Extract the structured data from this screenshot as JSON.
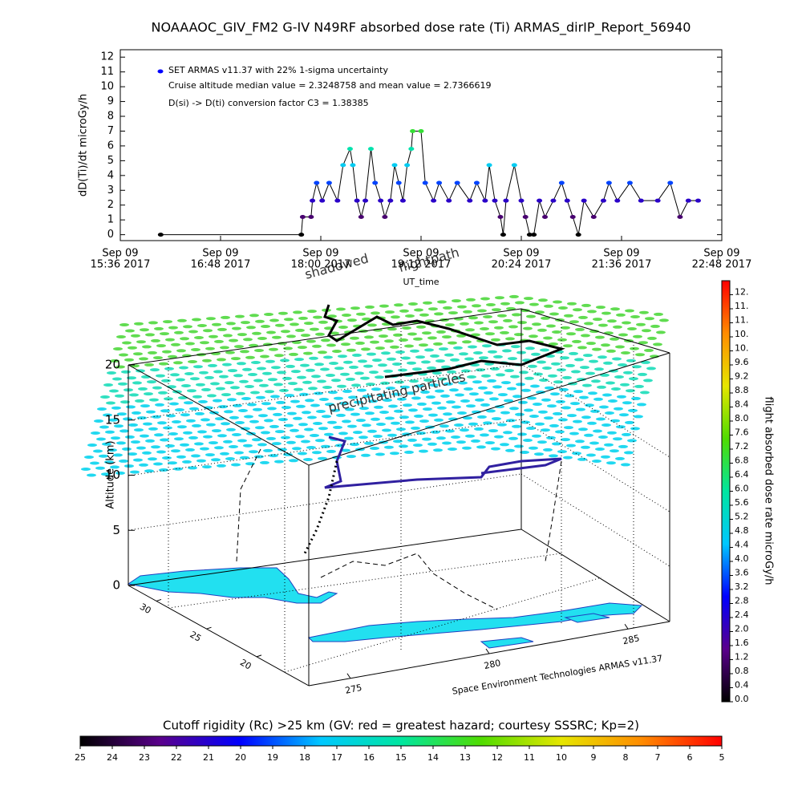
{
  "chart_data": [
    {
      "type": "line",
      "title": "NOAAAOC_GIV_FM2 G-IV   N49RF  absorbed dose rate (Ti) ARMAS_dirIP_Report_56940",
      "ylabel": "dD(Ti)/dt microGy/h",
      "xlabel": "UT_time",
      "annotations": [
        "Cruise altitude median value = 2.3248758 and mean value = 2.7366619",
        "D(si) -> D(ti) conversion factor C3 = 1.38385"
      ],
      "legend": "upper left",
      "xlim": [
        "2017-09-09T15:36",
        "2017-09-09T22:48"
      ],
      "xticks": [
        {
          "value": "2017-09-09T15:36",
          "label": [
            "Sep 09",
            "15:36 2017"
          ]
        },
        {
          "value": "2017-09-09T16:48",
          "label": [
            "Sep 09",
            "16:48 2017"
          ]
        },
        {
          "value": "2017-09-09T18:00",
          "label": [
            "Sep 09",
            "18:00 2017"
          ]
        },
        {
          "value": "2017-09-09T19:12",
          "label": [
            "Sep 09",
            "19:12 2017"
          ]
        },
        {
          "value": "2017-09-09T20:24",
          "label": [
            "Sep 09",
            "20:24 2017"
          ]
        },
        {
          "value": "2017-09-09T21:36",
          "label": [
            "Sep 09",
            "21:36 2017"
          ]
        },
        {
          "value": "2017-09-09T22:48",
          "label": [
            "Sep 09",
            "22:48 2017"
          ]
        }
      ],
      "ylim": [
        -0.4,
        12.5
      ],
      "yticks": [
        0,
        1,
        2,
        3,
        4,
        5,
        6,
        7,
        8,
        9,
        10,
        11,
        12
      ],
      "x": [
        "2017-09-09T16:05",
        "2017-09-09T17:46",
        "2017-09-09T17:47",
        "2017-09-09T17:53",
        "2017-09-09T17:54",
        "2017-09-09T17:57",
        "2017-09-09T18:01",
        "2017-09-09T18:06",
        "2017-09-09T18:12",
        "2017-09-09T18:16",
        "2017-09-09T18:21",
        "2017-09-09T18:23",
        "2017-09-09T18:26",
        "2017-09-09T18:29",
        "2017-09-09T18:32",
        "2017-09-09T18:36",
        "2017-09-09T18:39",
        "2017-09-09T18:43",
        "2017-09-09T18:46",
        "2017-09-09T18:50",
        "2017-09-09T18:53",
        "2017-09-09T18:56",
        "2017-09-09T18:59",
        "2017-09-09T19:02",
        "2017-09-09T19:05",
        "2017-09-09T19:06",
        "2017-09-09T19:12",
        "2017-09-09T19:15",
        "2017-09-09T19:21",
        "2017-09-09T19:25",
        "2017-09-09T19:32",
        "2017-09-09T19:38",
        "2017-09-09T19:47",
        "2017-09-09T19:52",
        "2017-09-09T19:58",
        "2017-09-09T20:01",
        "2017-09-09T20:05",
        "2017-09-09T20:09",
        "2017-09-09T20:11",
        "2017-09-09T20:13",
        "2017-09-09T20:19",
        "2017-09-09T20:24",
        "2017-09-09T20:27",
        "2017-09-09T20:30",
        "2017-09-09T20:33",
        "2017-09-09T20:37",
        "2017-09-09T20:41",
        "2017-09-09T20:47",
        "2017-09-09T20:53",
        "2017-09-09T20:57",
        "2017-09-09T21:01",
        "2017-09-09T21:05",
        "2017-09-09T21:09",
        "2017-09-09T21:16",
        "2017-09-09T21:23",
        "2017-09-09T21:27",
        "2017-09-09T21:33",
        "2017-09-09T21:42",
        "2017-09-09T21:50",
        "2017-09-09T22:02",
        "2017-09-09T22:11",
        "2017-09-09T22:18",
        "2017-09-09T22:24",
        "2017-09-09T22:31"
      ],
      "series": [
        {
          "name": "SET ARMAS v11.37 with 22% 1-sigma uncertainty",
          "color": "#0000ff",
          "values": [
            0,
            0,
            1.2,
            1.2,
            2.3,
            3.5,
            2.3,
            3.5,
            2.3,
            4.7,
            5.8,
            4.7,
            2.3,
            1.2,
            2.3,
            5.8,
            3.5,
            2.3,
            1.2,
            2.3,
            4.7,
            3.5,
            2.3,
            4.7,
            5.8,
            7.0,
            7.0,
            3.5,
            2.3,
            3.5,
            2.3,
            3.5,
            2.3,
            3.5,
            2.3,
            4.7,
            2.3,
            1.2,
            0,
            2.3,
            4.7,
            2.3,
            1.2,
            0,
            0,
            2.3,
            1.2,
            2.3,
            3.5,
            2.3,
            1.2,
            0,
            2.3,
            1.2,
            2.3,
            3.5,
            2.3,
            3.5,
            2.3,
            2.3,
            3.5,
            1.2,
            2.3,
            2.3
          ]
        }
      ]
    },
    {
      "type": "colorbar",
      "label": "flight absorbed dose rate microGy/h",
      "lim": [
        0,
        12
      ],
      "colormap": [
        "#000000",
        "#5a008c",
        "#0000ff",
        "#00c8ff",
        "#00e6a0",
        "#50dc00",
        "#e6e600",
        "#ff8c00",
        "#ff0000"
      ],
      "ticks": [
        {
          "value": 0,
          "label": "0.0"
        },
        0.4,
        0.8,
        1.2,
        1.6,
        {
          "value": 2,
          "label": "2.0"
        },
        2.4,
        2.8,
        3.2,
        3.6,
        {
          "value": 4,
          "label": "4.0"
        },
        4.4,
        4.8,
        5.2,
        5.6,
        {
          "value": 6,
          "label": "6.0"
        },
        6.4,
        6.8,
        7.2,
        7.6,
        {
          "value": 8,
          "label": "8.0"
        },
        8.4,
        8.8,
        9.2,
        9.6,
        {
          "value": 10,
          "label": "10."
        },
        {
          "value": 10.4,
          "label": "10."
        },
        {
          "value": 10.8,
          "label": "11."
        },
        {
          "value": 11.2,
          "label": "11."
        },
        {
          "value": 11.6,
          "label": "12."
        }
      ]
    },
    {
      "type": "colorbar",
      "label": "Cutoff rigidity (Rc) >25 km (GV: red = greatest hazard; courtesy SSSRC; Kp=2)",
      "lim": [
        25,
        5
      ],
      "colormap": [
        "#000000",
        "#5a008c",
        "#0000ff",
        "#00c8ff",
        "#00e6a0",
        "#50dc00",
        "#e6e600",
        "#ff8c00",
        "#ff0000"
      ],
      "ticks": [
        25,
        24,
        23,
        22,
        21,
        20,
        19,
        18,
        17,
        16,
        15,
        14,
        13,
        12,
        11,
        10,
        9,
        8,
        7,
        6,
        5
      ]
    },
    {
      "type": "3d",
      "zlabel": "Altitude (km)",
      "zlim": [
        0,
        20
      ],
      "zticks": [
        0,
        5,
        10,
        15,
        20
      ],
      "xlim": [
        273.5,
        286.5
      ],
      "xticks": [
        275,
        280,
        285
      ],
      "ylim": [
        32.8,
        14.8
      ],
      "yticks": [
        30,
        25,
        20
      ],
      "annotations": [
        "shadowed",
        "flightpath",
        "precipitating particles"
      ],
      "footer": "Space Environment Technologies ARMAS v11.37"
    }
  ]
}
